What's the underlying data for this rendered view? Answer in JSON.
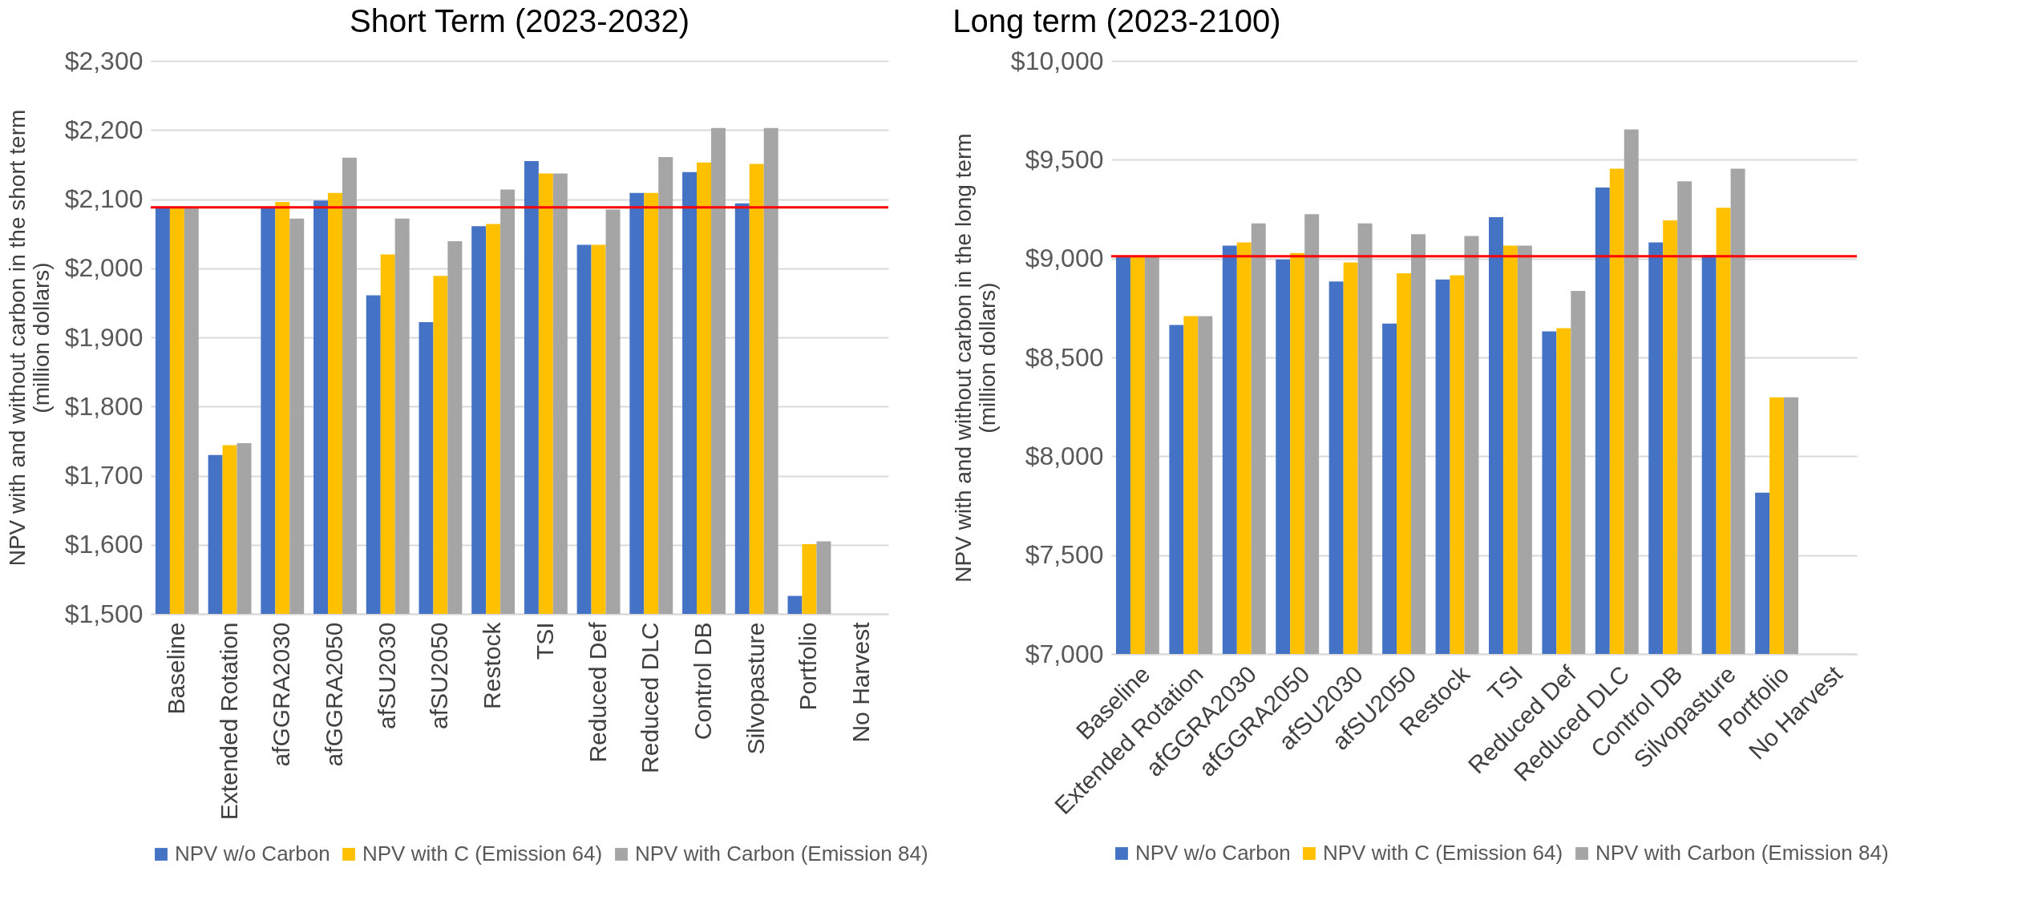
{
  "chart_data": [
    {
      "type": "bar",
      "title": "Short Term (2023-2032)",
      "ylabel": "NPV with and without carbon in the short term (million dollars)",
      "categories": [
        "Baseline",
        "Extended Rotation",
        "afGGRA2030",
        "afGGRA2050",
        "afSU2030",
        "afSU2050",
        "Restock",
        "TSI",
        "Reduced Def",
        "Reduced DLC",
        "Control DB",
        "Silvopasture",
        "Portfolio",
        "No Harvest"
      ],
      "series": [
        {
          "name": "NPV w/o Carbon",
          "color": "#4472c4",
          "values": [
            2088,
            1730,
            2088,
            2098,
            1961,
            1922,
            2061,
            2155,
            2034,
            2109,
            2139,
            2094,
            1526,
            null
          ]
        },
        {
          "name": "NPV with C (Emission 64)",
          "color": "#ffc000",
          "values": [
            2088,
            1744,
            2096,
            2109,
            2020,
            1989,
            2064,
            2137,
            2034,
            2109,
            2153,
            2151,
            1601,
            null
          ]
        },
        {
          "name": "NPV with Carbon (Emission 84)",
          "color": "#a5a5a5",
          "values": [
            2088,
            1747,
            2072,
            2160,
            2072,
            2039,
            2114,
            2137,
            2085,
            2161,
            2203,
            2203,
            1605,
            null
          ]
        }
      ],
      "ylim": [
        1500,
        2300
      ],
      "yticks": [
        {
          "value": 1500,
          "label": "$1,500"
        },
        {
          "value": 1600,
          "label": "$1,600"
        },
        {
          "value": 1700,
          "label": "$1,700"
        },
        {
          "value": 1800,
          "label": "$1,800"
        },
        {
          "value": 1900,
          "label": "$1,900"
        },
        {
          "value": 2000,
          "label": "$2,000"
        },
        {
          "value": 2100,
          "label": "$2,100"
        },
        {
          "value": 2200,
          "label": "$2,200"
        },
        {
          "value": 2300,
          "label": "$2,300"
        }
      ],
      "ref_lines": [
        {
          "axis": "y",
          "value": 2088,
          "color": "#ff0000"
        }
      ],
      "grid": "y",
      "legend": "bottom"
    },
    {
      "type": "bar",
      "title": "Long term (2023-2100)",
      "ylabel": "NPV with and without carbon in the long term (million dollars)",
      "categories": [
        "Baseline",
        "Extended Rotation",
        "afGGRA2030",
        "afGGRA2050",
        "afSU2030",
        "afSU2050",
        "Restock",
        "TSI",
        "Reduced Def",
        "Reduced DLC",
        "Control DB",
        "Silvopasture",
        "Portfolio",
        "No Harvest"
      ],
      "series": [
        {
          "name": "NPV w/o Carbon",
          "color": "#4472c4",
          "values": [
            9015,
            8664,
            9066,
            8996,
            8884,
            8671,
            8894,
            9209,
            8632,
            9359,
            9082,
            9018,
            7816,
            null
          ]
        },
        {
          "name": "NPV with C (Emission 64)",
          "color": "#ffc000",
          "values": [
            9015,
            8709,
            9082,
            9028,
            8980,
            8926,
            8916,
            9066,
            8648,
            9455,
            9193,
            9257,
            8298,
            null
          ]
        },
        {
          "name": "NPV with Carbon (Emission 84)",
          "color": "#a5a5a5",
          "values": [
            9015,
            8709,
            9178,
            9225,
            9178,
            9123,
            9114,
            9066,
            8836,
            9653,
            9391,
            9455,
            8298,
            null
          ]
        }
      ],
      "ylim": [
        7000,
        10000
      ],
      "yticks": [
        {
          "value": 7000,
          "label": "$7,000"
        },
        {
          "value": 7500,
          "label": "$7,500"
        },
        {
          "value": 8000,
          "label": "$8,000"
        },
        {
          "value": 8500,
          "label": "$8,500"
        },
        {
          "value": 9000,
          "label": "$9,000"
        },
        {
          "value": 9500,
          "label": "$9,500"
        },
        {
          "value": 10000,
          "label": "$10,000"
        }
      ],
      "ref_lines": [
        {
          "axis": "y",
          "value": 9012,
          "color": "#ff0000"
        }
      ],
      "grid": "y",
      "legend": "bottom"
    }
  ]
}
